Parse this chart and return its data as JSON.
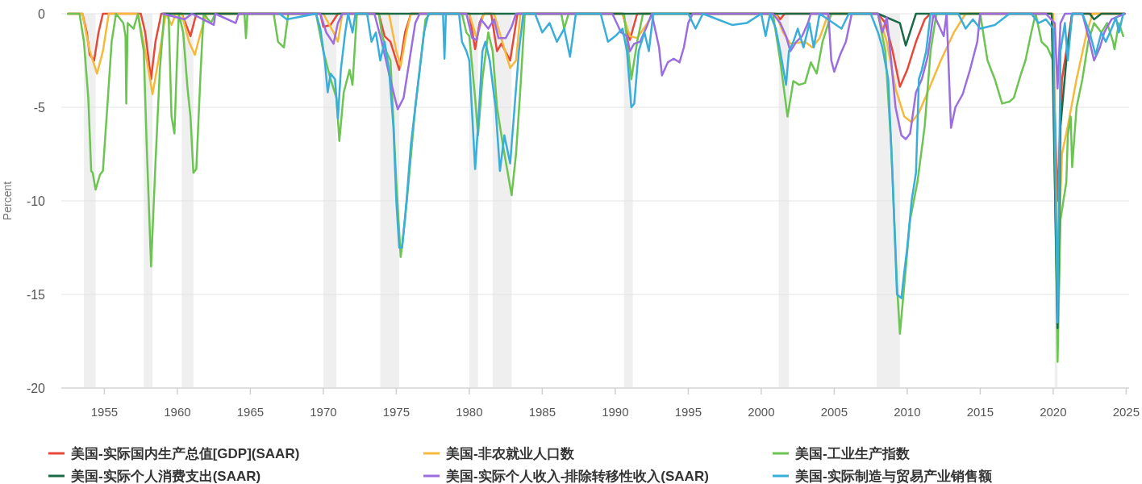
{
  "chart_data": {
    "type": "line",
    "ylabel": "Percent",
    "xlim": [
      1952.05,
      2025.2
    ],
    "ylim": [
      -20,
      0
    ],
    "xticks": [
      1955,
      1960,
      1965,
      1970,
      1975,
      1980,
      1985,
      1990,
      1995,
      2000,
      2005,
      2010,
      2015,
      2020,
      2025
    ],
    "yticks": [
      -20,
      -15,
      -10,
      -5,
      0
    ],
    "grid": "y",
    "legend": "bottom",
    "bands": [
      {
        "axis": "x",
        "from": 1953.6,
        "to": 1954.4,
        "color": "#efefef"
      },
      {
        "axis": "x",
        "from": 1957.7,
        "to": 1958.3,
        "color": "#efefef"
      },
      {
        "axis": "x",
        "from": 1960.3,
        "to": 1961.1,
        "color": "#efefef"
      },
      {
        "axis": "x",
        "from": 1970.0,
        "to": 1970.9,
        "color": "#efefef"
      },
      {
        "axis": "x",
        "from": 1973.9,
        "to": 1975.2,
        "color": "#efefef"
      },
      {
        "axis": "x",
        "from": 1980.0,
        "to": 1980.6,
        "color": "#efefef"
      },
      {
        "axis": "x",
        "from": 1981.6,
        "to": 1982.9,
        "color": "#efefef"
      },
      {
        "axis": "x",
        "from": 1990.6,
        "to": 1991.2,
        "color": "#efefef"
      },
      {
        "axis": "x",
        "from": 2001.2,
        "to": 2001.9,
        "color": "#efefef"
      },
      {
        "axis": "x",
        "from": 2007.9,
        "to": 2009.5,
        "color": "#efefef"
      },
      {
        "axis": "x",
        "from": 2020.1,
        "to": 2020.3,
        "color": "#efefef"
      }
    ],
    "series": [
      {
        "name": "美国-实际国内生产总值[GDP](SAAR)",
        "color": "#e8483a",
        "x": [
          1952.5,
          1953.5,
          1953.8,
          1954.0,
          1954.3,
          1954.6,
          1954.9,
          1957.5,
          1957.8,
          1958.2,
          1958.5,
          1958.9,
          1960.3,
          1960.6,
          1960.9,
          1961.3,
          1969.8,
          1970.0,
          1970.5,
          1971.0,
          1973.8,
          1974.2,
          1974.6,
          1975.2,
          1975.6,
          1976.0,
          1980.0,
          1980.4,
          1980.7,
          1981.0,
          1981.5,
          1981.9,
          1982.2,
          1982.8,
          1983.3,
          1990.5,
          1991.0,
          1991.5,
          2001.0,
          2001.3,
          2001.6,
          2008.0,
          2008.5,
          2009.0,
          2009.5,
          2010.0,
          2010.6,
          2011.2,
          2011.6,
          2019.9,
          2020.3,
          2020.6,
          2021.3,
          2024.9
        ],
        "values": [
          0,
          0,
          -1,
          -2.2,
          -2.5,
          -1,
          0,
          0,
          -1,
          -3.5,
          -1.5,
          0,
          0,
          -0.6,
          -1.2,
          0,
          0,
          -0.7,
          -0.6,
          0,
          0,
          -1.2,
          -1.5,
          -3.0,
          -1.0,
          0,
          0,
          -1.9,
          -0.5,
          0,
          0,
          -2.0,
          -1.6,
          -2.5,
          0,
          0,
          -1.4,
          0,
          0,
          -0.3,
          0,
          0,
          -0.5,
          -2.0,
          -3.9,
          -3.0,
          -1.5,
          -0.3,
          0,
          0,
          -10,
          -3.5,
          0,
          0
        ]
      },
      {
        "name": "美国-非农就业人口数",
        "color": "#f6b93b",
        "x": [
          1952.5,
          1953.5,
          1954.0,
          1954.5,
          1954.9,
          1955.3,
          1957.3,
          1957.8,
          1958.3,
          1958.7,
          1959.2,
          1959.6,
          1959.9,
          1960.3,
          1960.8,
          1961.2,
          1961.6,
          1962.0,
          1970.0,
          1970.7,
          1971.0,
          1971.3,
          1974.5,
          1975.0,
          1975.3,
          1975.7,
          1976.0,
          1980.0,
          1980.5,
          1981.0,
          1981.7,
          1982.3,
          1982.8,
          1983.2,
          1983.5,
          1990.5,
          1991.0,
          1991.5,
          1992.2,
          1992.6,
          2001.0,
          2001.5,
          2002.0,
          2003.0,
          2003.5,
          2004.0,
          2004.6,
          2008.0,
          2008.6,
          2009.2,
          2009.8,
          2010.3,
          2010.8,
          2011.5,
          2012.3,
          2013.2,
          2014.0,
          2020.0,
          2020.3,
          2020.6,
          2021.0,
          2021.6,
          2022.3,
          2022.7,
          2024.9
        ],
        "values": [
          0,
          0,
          -2,
          -3.2,
          -2,
          0,
          0,
          -2,
          -4.3,
          -2.5,
          0,
          -0.6,
          0,
          0,
          -1.5,
          -2.2,
          -1,
          0,
          0,
          -1.0,
          -1.5,
          0,
          0,
          -2.0,
          -2.8,
          -1.0,
          0,
          0,
          -1.3,
          0,
          0,
          -1.6,
          -2.9,
          -2.5,
          0,
          0,
          -1.2,
          -1.3,
          -0.5,
          0,
          0,
          -1.0,
          -1.6,
          -1.5,
          -1.8,
          -1.3,
          0,
          0,
          -1.5,
          -4.0,
          -5.5,
          -5.8,
          -5.3,
          -4,
          -2.5,
          -1,
          0,
          0,
          -14.5,
          -7.5,
          -6.0,
          -3.5,
          -1.0,
          0,
          0
        ]
      },
      {
        "name": "美国-工业生产指数",
        "color": "#6cc552",
        "x": [
          1952.5,
          1953.3,
          1953.6,
          1953.9,
          1954.1,
          1954.2,
          1954.4,
          1954.7,
          1954.9,
          1955.2,
          1955.5,
          1955.8,
          1956.3,
          1956.45,
          1956.5,
          1956.6,
          1957.0,
          1957.3,
          1957.7,
          1957.9,
          1958.2,
          1958.5,
          1958.8,
          1959.1,
          1959.4,
          1959.6,
          1959.8,
          1960.0,
          1960.1,
          1960.4,
          1960.7,
          1960.9,
          1961.1,
          1961.3,
          1961.6,
          1961.8,
          1962.3,
          1962.6,
          1964.6,
          1964.7,
          1964.8,
          1966.6,
          1966.9,
          1967.3,
          1967.6,
          1969.5,
          1970.0,
          1970.5,
          1970.9,
          1971.1,
          1971.4,
          1971.8,
          1972.0,
          1972.3,
          1973.8,
          1974.0,
          1974.3,
          1974.6,
          1975.0,
          1975.3,
          1975.6,
          1975.9,
          1976.3,
          1976.6,
          1977.0,
          1977.3,
          1979.5,
          1979.8,
          1980.0,
          1980.4,
          1980.6,
          1980.9,
          1981.3,
          1981.6,
          1981.9,
          1982.3,
          1982.9,
          1983.2,
          1983.5,
          1983.8,
          1986.3,
          1986.5,
          1986.8,
          1990.6,
          1991.1,
          1991.5,
          1991.9,
          2000.8,
          2001.3,
          2001.8,
          2002.2,
          2002.6,
          2003.0,
          2003.4,
          2003.8,
          2004.2,
          2004.8,
          2008.0,
          2008.5,
          2008.9,
          2009.3,
          2009.5,
          2009.8,
          2010.2,
          2010.7,
          2011.2,
          2011.6,
          2012.0,
          2015.0,
          2015.5,
          2016.0,
          2016.5,
          2017.0,
          2017.3,
          2017.8,
          2018.1,
          2018.5,
          2018.8,
          2019.2,
          2019.6,
          2020.0,
          2020.3,
          2020.5,
          2020.9,
          2021.0,
          2021.2,
          2021.3,
          2021.6,
          2022.0,
          2022.4,
          2022.8,
          2023.3,
          2023.7,
          2024.1,
          2024.2,
          2024.5,
          2024.8
        ],
        "values": [
          0,
          0,
          -1.5,
          -4.5,
          -8.4,
          -8.5,
          -9.4,
          -8.6,
          -8.4,
          -5,
          -1.5,
          0,
          -0.5,
          -1.2,
          -4.8,
          -0.5,
          -0.8,
          0,
          -2,
          -7,
          -13.5,
          -8,
          -3,
          0,
          0,
          -5.5,
          -6.4,
          -2,
          0,
          -1,
          -4,
          -5.5,
          -8.5,
          -8.3,
          -3,
          0,
          -0.5,
          0,
          0,
          -1.3,
          0,
          0,
          -1.5,
          -1.8,
          0,
          0,
          -2,
          -3.5,
          -4.5,
          -6.8,
          -4.2,
          -3,
          -3.8,
          0,
          0,
          -1,
          -2,
          -2.5,
          -9,
          -13.0,
          -11,
          -8.5,
          -5,
          -3,
          -0.3,
          0,
          0,
          -1,
          -1.2,
          -4.5,
          -6.5,
          -3.5,
          -1,
          -2,
          -5,
          -7,
          -9.7,
          -7.5,
          -4,
          0,
          0,
          -0.8,
          0,
          0,
          -3.5,
          -1.5,
          0,
          0,
          -2.5,
          -5.5,
          -3.6,
          -3.8,
          -3.7,
          -2.6,
          -3.2,
          -1.5,
          0,
          0,
          -2,
          -7,
          -14.5,
          -17.1,
          -14.5,
          -11,
          -9,
          -6,
          -2,
          0,
          0,
          -2.5,
          -3.5,
          -4.8,
          -4.7,
          -4.5,
          -3.2,
          -2.5,
          -1,
          0,
          -1.5,
          -1.8,
          -2.5,
          -18.6,
          -11,
          -9,
          -6.5,
          -5.5,
          -8.2,
          -5.0,
          -3.5,
          -1.5,
          -0.5,
          -1,
          -0.5,
          -1.5,
          -1.9,
          -0.5,
          -1.2
        ]
      },
      {
        "name": "美国-实际个人消费支出(SAAR)",
        "color": "#1a6a46",
        "x": [
          1959.0,
          2008.0,
          2009.5,
          2009.9,
          2010.6,
          2019.9,
          2020.3,
          2020.5,
          2020.9,
          2021.3,
          2022.5,
          2022.8,
          2023.3,
          2024.9
        ],
        "values": [
          0,
          0,
          -0.5,
          -1.7,
          0,
          0,
          -16.8,
          -6,
          -2.5,
          0,
          0,
          -0.3,
          0,
          0
        ]
      },
      {
        "name": "美国-实际个人收入-排除转移性收入(SAAR)",
        "color": "#9b6de0",
        "x": [
          1959.0,
          1960.5,
          1961.0,
          1962.5,
          1962.6,
          1964.0,
          1964.2,
          1969.8,
          1970.2,
          1970.7,
          1971.0,
          1971.3,
          1973.5,
          1974.0,
          1974.5,
          1974.9,
          1975.1,
          1975.5,
          1975.9,
          1976.3,
          1976.6,
          1979.8,
          1980.2,
          1980.5,
          1980.8,
          1981.3,
          1981.7,
          1982.0,
          1982.5,
          1982.9,
          1983.2,
          1989.8,
          1990.4,
          1990.8,
          1991.0,
          1991.3,
          1991.7,
          1992.2,
          1992.5,
          1993.0,
          1993.2,
          1993.6,
          1994.0,
          1994.4,
          1994.7,
          1995.0,
          1995.3,
          2000.8,
          2001.3,
          2001.7,
          2002.0,
          2002.4,
          2002.8,
          2003.2,
          2003.4,
          2004.6,
          2004.8,
          2005.0,
          2005.4,
          2005.8,
          2006.2,
          2008.0,
          2008.3,
          2008.6,
          2008.9,
          2009.2,
          2009.6,
          2009.9,
          2010.2,
          2010.6,
          2011.0,
          2011.4,
          2011.8,
          2012.5,
          2012.7,
          2013.0,
          2013.3,
          2013.8,
          2014.3,
          2014.8,
          2015.0,
          2019.5,
          2020.1,
          2020.3,
          2020.5,
          2020.8,
          2022.0,
          2022.5,
          2022.8,
          2023.2,
          2023.5,
          2024.0,
          2024.9
        ],
        "values": [
          0,
          -0.3,
          0,
          -0.6,
          0,
          -0.5,
          0,
          0,
          -1.0,
          -1.6,
          -0.5,
          0,
          0,
          -1.5,
          -3.2,
          -4.5,
          -5.1,
          -4.5,
          -2.5,
          -0.5,
          0,
          0,
          -1.3,
          -1.4,
          -0.3,
          -0.8,
          -0.3,
          -1.3,
          -1.3,
          -0.7,
          0,
          0,
          -1.0,
          -1.2,
          -2.0,
          -1.6,
          -1.5,
          -0.6,
          0,
          -1.8,
          -3.3,
          -2.6,
          -2.4,
          -2.6,
          -1.8,
          -0.5,
          0,
          0,
          -0.5,
          -1.2,
          -2.0,
          -1.5,
          -1.2,
          -0.5,
          0,
          0,
          -2.5,
          -3.1,
          -2.2,
          -1.5,
          0,
          0,
          -1,
          -0.2,
          -2.5,
          -5.0,
          -6.5,
          -6.7,
          -6.4,
          -4.2,
          -3.5,
          -2.3,
          0,
          -1.2,
          0,
          -6.1,
          -5.0,
          -4.3,
          -3,
          -1.5,
          0,
          0,
          -0.5,
          -4,
          -0.5,
          0,
          0,
          -1.5,
          -2.5,
          -1.8,
          -1.0,
          -0.3,
          0
        ]
      },
      {
        "name": "美国-实际制造与贸易产业销售额",
        "color": "#3aaedb",
        "x": [
          1967.0,
          1967.5,
          1969.5,
          1969.8,
          1970.1,
          1970.3,
          1970.5,
          1970.8,
          1971.0,
          1971.2,
          1971.5,
          1971.7,
          1972.0,
          1972.2,
          1973.0,
          1973.3,
          1973.6,
          1973.9,
          1974.2,
          1974.5,
          1974.8,
          1975.0,
          1975.2,
          1975.4,
          1975.7,
          1976.0,
          1976.3,
          1976.6,
          1976.9,
          1977.2,
          1978.2,
          1978.3,
          1978.4,
          1979.3,
          1979.5,
          1979.8,
          1980.0,
          1980.4,
          1980.6,
          1980.9,
          1981.1,
          1981.4,
          1981.8,
          1982.1,
          1982.4,
          1982.8,
          1983.1,
          1983.4,
          1983.7,
          1984.5,
          1985.0,
          1985.5,
          1986.0,
          1986.5,
          1986.9,
          1987.3,
          1989.0,
          1989.5,
          1990.0,
          1990.5,
          1990.8,
          1991.1,
          1991.3,
          1991.6,
          1992.0,
          1992.3,
          1992.6,
          1995.0,
          1995.5,
          1996.0,
          1998.0,
          1999.0,
          2000.0,
          2000.3,
          2000.6,
          2001.0,
          2001.3,
          2001.7,
          2001.9,
          2002.2,
          2002.5,
          2002.9,
          2003.3,
          2003.6,
          2004.0,
          2005.5,
          2006.0,
          2007.5,
          2008.0,
          2008.3,
          2008.7,
          2009.0,
          2009.3,
          2009.6,
          2009.8,
          2010.0,
          2010.3,
          2010.6,
          2010.8,
          2011.0,
          2011.3,
          2011.6,
          2013.5,
          2014.0,
          2014.5,
          2015.0,
          2016.0,
          2017.0,
          2018.5,
          2019.0,
          2019.5,
          2020.0,
          2020.3,
          2020.5,
          2020.8,
          2021.0,
          2021.3,
          2022.0,
          2022.5,
          2022.9,
          2023.3,
          2023.6,
          2024.0,
          2024.3,
          2024.5,
          2024.8
        ],
        "values": [
          0,
          -0.3,
          0,
          -0.8,
          -2.5,
          -4.2,
          -3.2,
          -3.5,
          -5.6,
          -3,
          -1.0,
          0,
          -1.0,
          0,
          0,
          -1.5,
          -1.0,
          -2.5,
          -1.5,
          -3,
          -6,
          -10,
          -12.5,
          -12.5,
          -10,
          -7,
          -5,
          -3,
          -1.0,
          0,
          0,
          -2.4,
          0,
          0,
          -1.5,
          -2.0,
          -2.5,
          -8.3,
          -6,
          -2,
          -1.5,
          -2.5,
          -5,
          -8.4,
          -6.5,
          -8.0,
          -5,
          -2,
          0,
          0,
          -1.0,
          -0.5,
          -1.5,
          -0.8,
          -2.3,
          0,
          0,
          -1.5,
          -1.2,
          -0.8,
          -2.0,
          -5.0,
          -4.8,
          -2,
          -1.0,
          -2,
          0,
          0,
          -0.8,
          0,
          -0.6,
          -0.5,
          0,
          -1.2,
          0,
          -0.8,
          -2,
          -3.8,
          -2,
          -1.5,
          -0.8,
          -1.8,
          -0.5,
          -1.8,
          0,
          -0.8,
          0,
          0,
          -1,
          -1.8,
          -3.5,
          -8.8,
          -15.0,
          -15.2,
          -13.8,
          -12.5,
          -10.0,
          -8.5,
          -3.5,
          -3.0,
          -2.0,
          0,
          0,
          -0.8,
          -0.3,
          -0.8,
          -0.6,
          0,
          0,
          -0.5,
          -0.3,
          -0.8,
          -16.5,
          -2,
          -0.5,
          -2.5,
          0,
          0,
          -1.0,
          -2.2,
          -1.0,
          -1.5,
          -0.8,
          -0.2,
          -1.0,
          0
        ]
      }
    ]
  }
}
